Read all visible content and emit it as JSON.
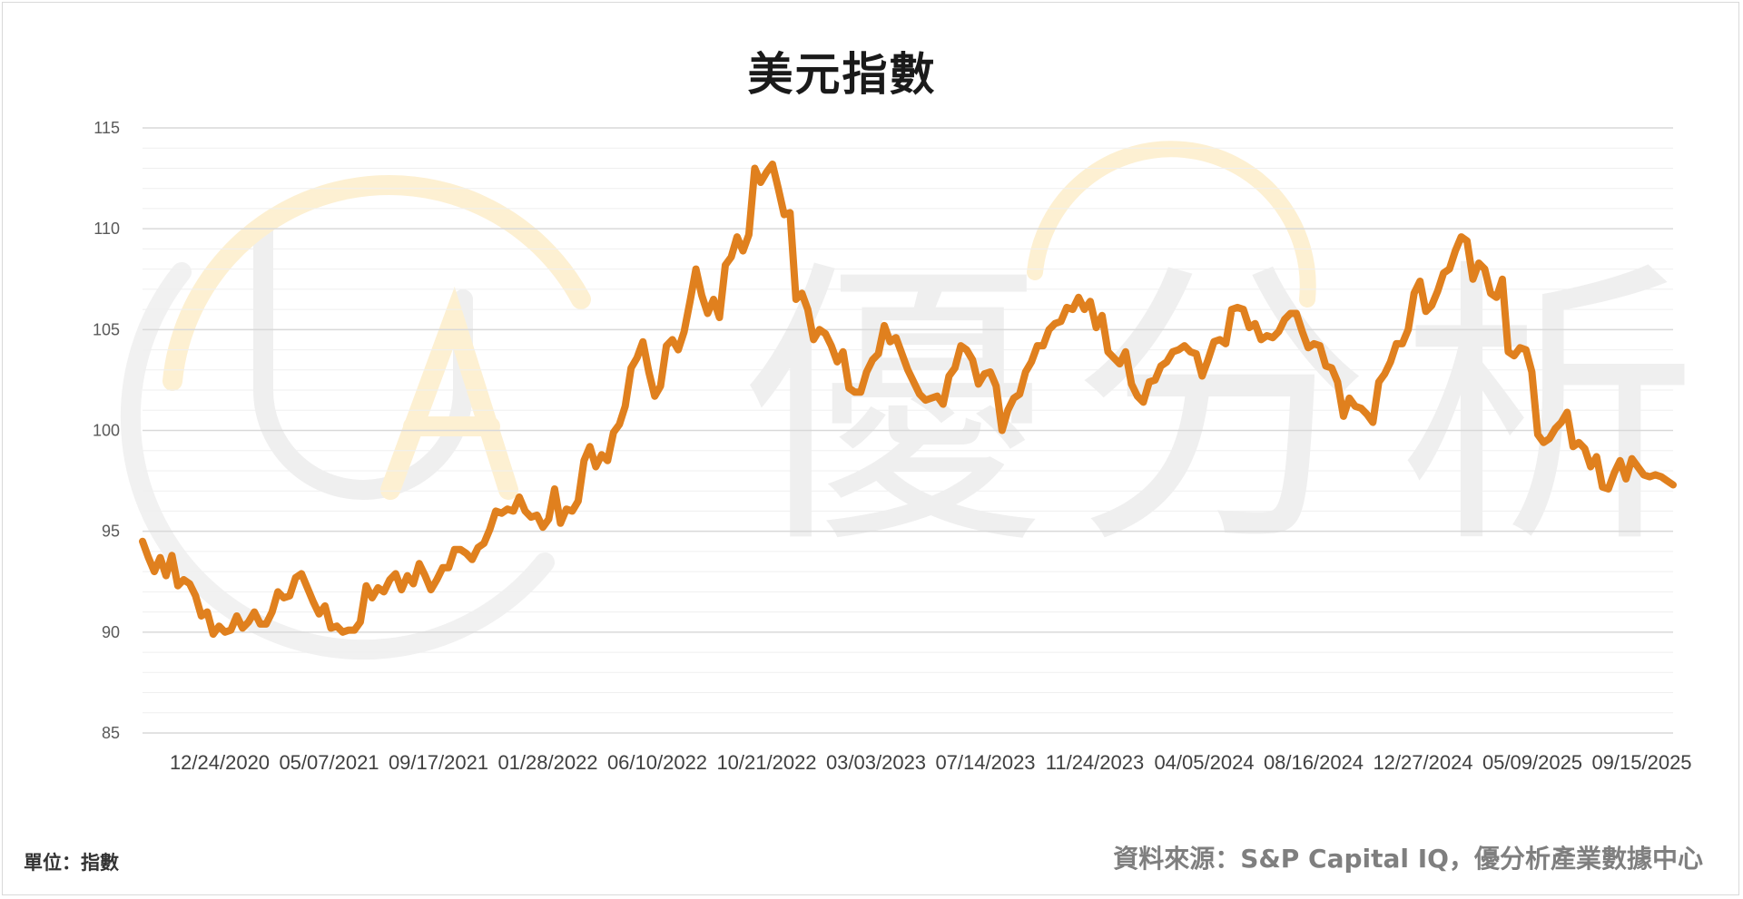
{
  "watermark": {
    "text": "優分析",
    "accent": "#fce7b8",
    "gray": "#ececec"
  },
  "footer": {
    "unit": "單位：指數",
    "source": "資料來源：S&P Capital IQ，優分析產業數據中心"
  },
  "colors": {
    "line": "#e0801e",
    "grid": "#d9d9d9",
    "minor_grid": "#efefef"
  },
  "chart_data": {
    "type": "line",
    "title": "美元指數",
    "xlabel": "",
    "ylabel": "",
    "ylim": [
      85,
      115
    ],
    "yticks": [
      85,
      90,
      95,
      100,
      105,
      110,
      115
    ],
    "minor_grid_step": 1,
    "grid": true,
    "x_tick_labels": [
      "12/24/2020",
      "05/07/2021",
      "09/17/2021",
      "01/28/2022",
      "06/10/2022",
      "10/21/2022",
      "03/03/2023",
      "07/14/2023",
      "11/24/2023",
      "04/05/2024",
      "08/16/2024",
      "12/27/2024",
      "05/09/2025",
      "09/15/2025"
    ],
    "series": [
      {
        "values": [
          94.5,
          93.7,
          93.0,
          93.7,
          92.8,
          93.8,
          92.3,
          92.6,
          92.4,
          91.8,
          90.8,
          91.0,
          89.9,
          90.3,
          90.0,
          90.1,
          90.8,
          90.2,
          90.5,
          91.0,
          90.4,
          90.4,
          91.0,
          92.0,
          91.7,
          91.8,
          92.7,
          92.9,
          92.2,
          91.5,
          90.9,
          91.3,
          90.2,
          90.3,
          90.0,
          90.1,
          90.1,
          90.5,
          92.3,
          91.7,
          92.2,
          92.0,
          92.6,
          92.9,
          92.1,
          92.8,
          92.4,
          93.4,
          92.8,
          92.1,
          92.6,
          93.2,
          93.2,
          94.1,
          94.1,
          93.9,
          93.6,
          94.2,
          94.4,
          95.1,
          96.0,
          95.9,
          96.1,
          96.0,
          96.7,
          96.0,
          95.7,
          95.8,
          95.2,
          95.6,
          97.1,
          95.4,
          96.1,
          96.0,
          96.5,
          98.5,
          99.2,
          98.2,
          98.8,
          98.5,
          99.9,
          100.3,
          101.2,
          103.1,
          103.6,
          104.4,
          102.9,
          101.7,
          102.2,
          104.2,
          104.5,
          104.0,
          104.9,
          106.4,
          108.0,
          106.7,
          105.8,
          106.5,
          105.6,
          108.2,
          108.6,
          109.6,
          108.9,
          109.7,
          113.0,
          112.3,
          112.8,
          113.2,
          112.0,
          110.7,
          110.8,
          106.5,
          106.8,
          106.0,
          104.5,
          105.0,
          104.8,
          104.2,
          103.4,
          103.9,
          102.1,
          101.9,
          101.9,
          102.9,
          103.5,
          103.8,
          105.2,
          104.4,
          104.6,
          103.8,
          103.0,
          102.4,
          101.8,
          101.5,
          101.6,
          101.7,
          101.3,
          102.7,
          103.1,
          104.2,
          104.0,
          103.5,
          102.3,
          102.8,
          102.9,
          102.2,
          100.0,
          101.0,
          101.6,
          101.8,
          102.9,
          103.4,
          104.2,
          104.2,
          105.0,
          105.3,
          105.4,
          106.1,
          106.0,
          106.6,
          106.0,
          106.4,
          105.1,
          105.7,
          103.9,
          103.6,
          103.3,
          103.9,
          102.3,
          101.7,
          101.4,
          102.4,
          102.5,
          103.2,
          103.4,
          103.9,
          104.0,
          104.2,
          103.9,
          103.8,
          102.7,
          103.5,
          104.4,
          104.5,
          104.3,
          106.0,
          106.1,
          106.0,
          105.1,
          105.3,
          104.5,
          104.7,
          104.6,
          104.9,
          105.5,
          105.8,
          105.8,
          104.9,
          104.1,
          104.3,
          104.2,
          103.2,
          103.1,
          102.4,
          100.7,
          101.6,
          101.2,
          101.1,
          100.8,
          100.4,
          102.4,
          102.8,
          103.4,
          104.3,
          104.3,
          105.0,
          106.8,
          107.4,
          105.9,
          106.2,
          106.9,
          107.8,
          108.0,
          108.9,
          109.6,
          109.4,
          107.5,
          108.3,
          108.0,
          106.8,
          106.6,
          107.5,
          103.9,
          103.7,
          104.1,
          104.0,
          102.9,
          99.8,
          99.4,
          99.6,
          100.1,
          100.4,
          100.9,
          99.2,
          99.4,
          99.1,
          98.2,
          98.7,
          97.2,
          97.1,
          97.9,
          98.5,
          97.6,
          98.6,
          98.2,
          97.8,
          97.7,
          97.8,
          97.7,
          97.5,
          97.3
        ]
      }
    ]
  }
}
